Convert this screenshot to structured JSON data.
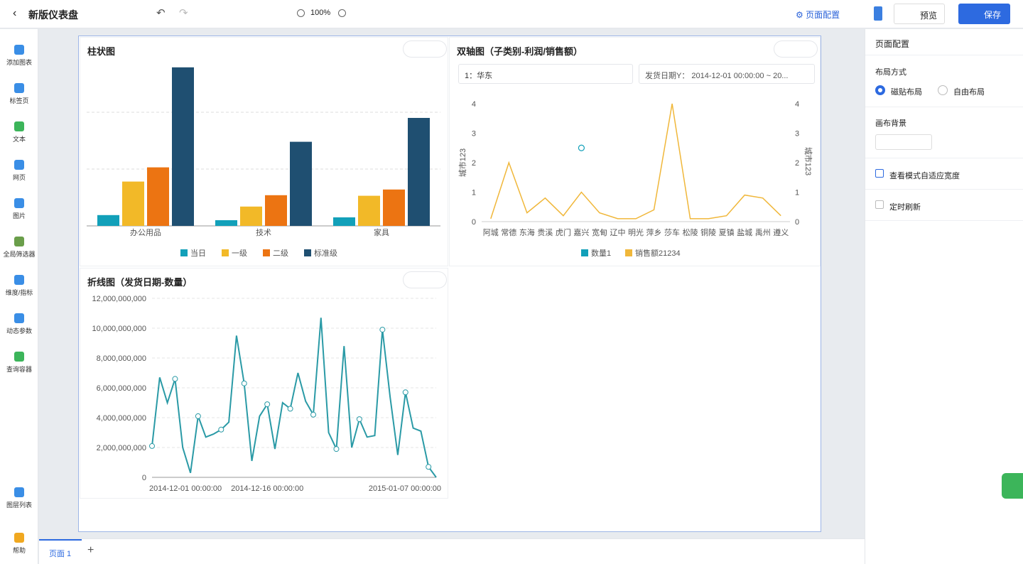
{
  "header": {
    "title": "新版仪表盘",
    "zoom": "100%",
    "page_config": "页面配置",
    "preview": "预览",
    "save": "保存"
  },
  "sidebar": {
    "items": [
      "添加图表",
      "标签页",
      "文本",
      "网页",
      "图片",
      "全局筛选器",
      "维度/指标",
      "动态参数",
      "查询容器"
    ],
    "layers": "图层列表",
    "help": "帮助"
  },
  "chart_data": [
    {
      "type": "bar",
      "title": "柱状图",
      "categories": [
        "办公用品",
        "技术",
        "家具"
      ],
      "series": [
        {
          "name": "当日",
          "color": "#12a0b9",
          "values": [
            19,
            10,
            15
          ]
        },
        {
          "name": "一级",
          "color": "#f2b928",
          "values": [
            78,
            34,
            53
          ]
        },
        {
          "name": "二级",
          "color": "#ec7412",
          "values": [
            103,
            54,
            64
          ]
        },
        {
          "name": "标准级",
          "color": "#1f4f71",
          "values": [
            279,
            148,
            190
          ]
        }
      ],
      "ylim": [
        0,
        300
      ],
      "yticks": [
        0,
        100,
        200
      ],
      "grid": true
    },
    {
      "type": "line",
      "title": "双轴图（子类别-利润/销售额）",
      "filters": [
        "1：华东",
        "发货日期Y： 2014-12-01 00:00:00 ~ 20..."
      ],
      "categories": [
        "阿城",
        "常德",
        "东海",
        "贵溪",
        "虎门",
        "嘉兴",
        "宽甸",
        "辽中",
        "明光",
        "萍乡",
        "莎车",
        "松陵",
        "铜陵",
        "夏镇",
        "盐城",
        "禹州",
        "遵义"
      ],
      "y_label": "城市123",
      "y2_label": "城市123",
      "series": [
        {
          "name": "数量1",
          "color": "#12a0b9",
          "values": [
            null,
            null,
            null,
            null,
            null,
            2.5,
            null,
            null,
            null,
            null,
            null,
            null,
            null,
            null,
            null,
            null,
            null
          ]
        },
        {
          "name": "销售额21234",
          "color": "#f0b73a",
          "axis": "y2",
          "values": [
            0.1,
            2.0,
            0.3,
            0.8,
            0.2,
            1.0,
            0.3,
            0.1,
            0.1,
            0.4,
            4.0,
            0.1,
            0.1,
            0.2,
            0.9,
            0.8,
            0.2
          ]
        }
      ],
      "ylim": [
        0,
        4
      ],
      "yticks": [
        0,
        1,
        2,
        3,
        4
      ],
      "y2lim": [
        0,
        4
      ],
      "y2ticks": [
        0,
        1,
        2,
        3,
        4
      ]
    },
    {
      "type": "line",
      "title": "折线图（发货日期-数量）",
      "color": "#2a9aa6",
      "categories": [
        "2014-12-01 00:00:00",
        null,
        null,
        null,
        null,
        null,
        null,
        null,
        null,
        null,
        null,
        null,
        null,
        null,
        null,
        "2014-12-16 00:00:00",
        null,
        null,
        null,
        null,
        null,
        null,
        null,
        null,
        null,
        null,
        null,
        null,
        null,
        null,
        null,
        null,
        null,
        null,
        null,
        null,
        null,
        "2015-01-07 00:00:00"
      ],
      "values": [
        2100000000,
        6700000000,
        5000000000,
        6600000000,
        2000000000,
        300000000,
        4100000000,
        2700000000,
        2900000000,
        3200000000,
        3700000000,
        9500000000,
        6300000000,
        1100000000,
        4100000000,
        4900000000,
        1900000000,
        5000000000,
        4600000000,
        7000000000,
        5100000000,
        4200000000,
        10700000000,
        3000000000,
        1900000000,
        8800000000,
        2000000000,
        3900000000,
        2700000000,
        2800000000,
        9900000000,
        5400000000,
        1500000000,
        5700000000,
        3300000000,
        3100000000,
        700000000,
        0
      ],
      "ylim": [
        0,
        12000000000
      ],
      "yticks": [
        0,
        {
          "value": 2000000000,
          "label": "2,000,000,000"
        },
        {
          "value": 4000000000,
          "label": "4,000,000,000"
        },
        {
          "value": 6000000000,
          "label": "6,000,000,000"
        },
        {
          "value": 8000000000,
          "label": "8,000,000,000"
        },
        {
          "value": 10000000000,
          "label": "10,000,000,000"
        },
        {
          "value": 12000000000,
          "label": "12,000,000,000"
        }
      ],
      "grid": true
    }
  ],
  "panel": {
    "title": "页面配置",
    "layout_label": "布局方式",
    "layout_options": [
      "磁贴布局",
      "自由布局"
    ],
    "background_label": "画布背景",
    "adaptive_width": "查看模式自适应宽度",
    "auto_refresh": "定时刷新"
  },
  "tabs": {
    "pages": [
      "页面 1"
    ]
  }
}
